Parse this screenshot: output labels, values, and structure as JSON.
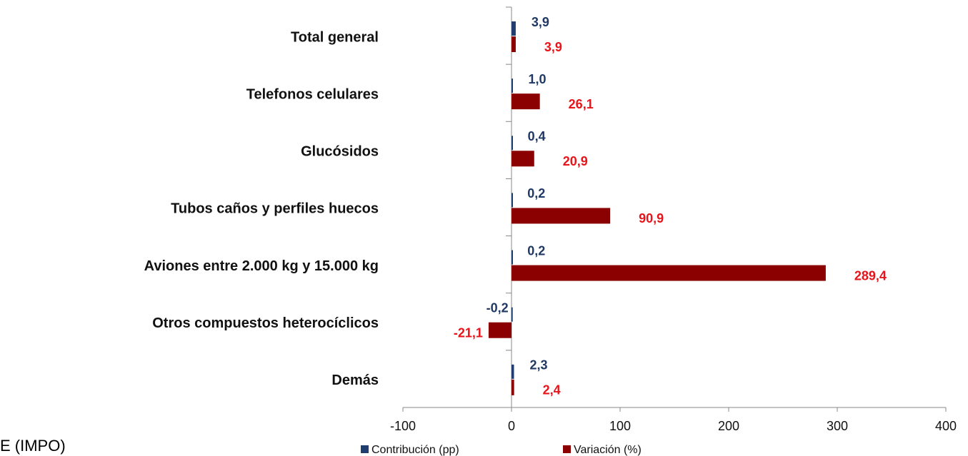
{
  "chart_data": {
    "type": "bar",
    "orientation": "horizontal",
    "categories": [
      "Total general",
      "Telefonos celulares",
      "Glucósidos",
      "Tubos caños y perfiles huecos",
      "Aviones entre 2.000 kg y 15.000 kg",
      "Otros compuestos heterocíclicos",
      "Demás"
    ],
    "series": [
      {
        "name": "Contribución (pp)",
        "color": "#1f3d6e",
        "label_color": "#1f3864",
        "values": [
          3.9,
          1.0,
          0.4,
          0.2,
          0.2,
          -0.2,
          2.3
        ],
        "value_labels": [
          "3,9",
          "1,0",
          "0,4",
          "0,2",
          "0,2",
          "-0,2",
          "2,3"
        ]
      },
      {
        "name": "Variación (%)",
        "color": "#8b0000",
        "label_color": "#e8141a",
        "values": [
          3.9,
          26.1,
          20.9,
          90.9,
          289.4,
          -21.1,
          2.4
        ],
        "value_labels": [
          "3,9",
          "26,1",
          "20,9",
          "90,9",
          "289,4",
          "-21,1",
          "2,4"
        ]
      }
    ],
    "xlim": [
      -100,
      400
    ],
    "xticks": [
      -100,
      0,
      100,
      200,
      300,
      400
    ],
    "legend": "bottom",
    "source": "E (IMPO)"
  }
}
